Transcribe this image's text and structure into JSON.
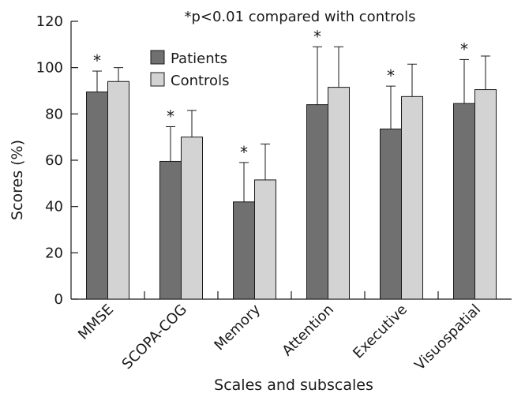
{
  "chart_data": {
    "type": "bar",
    "title": "",
    "annotation": "*p<0.01 compared with controls",
    "xlabel": "Scales and subscales",
    "ylabel": "Scores (%)",
    "ylim": [
      0,
      120
    ],
    "yticks": [
      0,
      20,
      40,
      60,
      80,
      100,
      120
    ],
    "categories": [
      "MMSE",
      "SCOPA-COG",
      "Memory",
      "Attention",
      "Executive",
      "Visuospatial"
    ],
    "series": [
      {
        "name": "Patients",
        "color": "#707070",
        "values": [
          89.5,
          59.5,
          42,
          84,
          73.5,
          84.5
        ],
        "error_upper": [
          98.5,
          74.5,
          59,
          109,
          92,
          103.5
        ]
      },
      {
        "name": "Controls",
        "color": "#d3d3d3",
        "values": [
          94,
          70,
          51.5,
          91.5,
          87.5,
          90.5
        ],
        "error_upper": [
          100,
          81.5,
          67,
          109,
          101.5,
          105
        ]
      }
    ],
    "significance_marker": "*",
    "significant_categories": [
      0,
      1,
      2,
      3,
      4,
      5
    ],
    "legend_position": "top-left",
    "grid": false
  }
}
